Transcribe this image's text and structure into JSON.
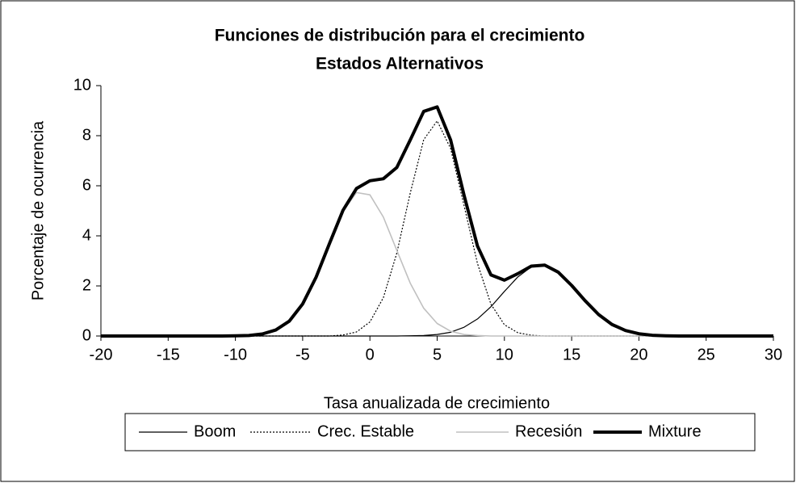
{
  "chart_data": {
    "type": "line",
    "title": "Funciones de distribución para el crecimiento",
    "subtitle": "Estados Alternativos",
    "x_label": "Tasa anualizada de crecimiento",
    "y_label": "Porcentaje de ocurrencia",
    "x": [
      -20,
      -19,
      -18,
      -17,
      -16,
      -15,
      -14,
      -13,
      -12,
      -11,
      -10,
      -9,
      -8,
      -7,
      -6,
      -5,
      -4,
      -3,
      -2,
      -1,
      0,
      1,
      2,
      3,
      4,
      5,
      6,
      7,
      8,
      9,
      10,
      11,
      12,
      13,
      14,
      15,
      16,
      17,
      18,
      19,
      20,
      21,
      22,
      23,
      24,
      25,
      26,
      27,
      28,
      29,
      30
    ],
    "series": [
      {
        "name": "Boom",
        "color": "#000000",
        "width": 1.2,
        "dash": "none",
        "values": [
          0,
          0,
          0,
          0,
          0,
          0,
          0,
          0,
          0,
          0,
          0,
          0,
          0,
          0,
          0,
          0,
          0,
          0,
          0,
          0,
          0,
          0,
          0,
          0.01,
          0.02,
          0.06,
          0.15,
          0.35,
          0.68,
          1.17,
          1.78,
          2.36,
          2.76,
          2.83,
          2.55,
          2.02,
          1.41,
          0.86,
          0.46,
          0.22,
          0.09,
          0.03,
          0.01,
          0,
          0,
          0,
          0,
          0,
          0,
          0,
          0
        ]
      },
      {
        "name": "Crec. Estable",
        "color": "#000000",
        "width": 1.2,
        "dash": "2 2",
        "values": [
          0,
          0,
          0,
          0,
          0,
          0,
          0,
          0,
          0,
          0,
          0,
          0,
          0,
          0,
          0,
          0,
          0,
          0,
          0.04,
          0.16,
          0.56,
          1.53,
          3.31,
          5.71,
          7.84,
          8.59,
          7.49,
          5.21,
          2.89,
          1.27,
          0.45,
          0.13,
          0.03,
          0,
          0,
          0,
          0,
          0,
          0,
          0,
          0,
          0,
          0,
          0,
          0,
          0,
          0,
          0,
          0,
          0,
          0
        ]
      },
      {
        "name": "Recesión",
        "color": "#c0c0c0",
        "width": 1.6,
        "dash": "none",
        "values": [
          0,
          0,
          0,
          0,
          0,
          0,
          0,
          0,
          0,
          0,
          0.01,
          0.02,
          0.08,
          0.24,
          0.59,
          1.28,
          2.35,
          3.7,
          4.98,
          5.73,
          5.64,
          4.75,
          3.42,
          2.11,
          1.11,
          0.5,
          0.19,
          0.06,
          0.02,
          0,
          0,
          0,
          0,
          0,
          0,
          0,
          0,
          0,
          0,
          0,
          0,
          0,
          0,
          0,
          0,
          0,
          0,
          0,
          0,
          0,
          0
        ]
      },
      {
        "name": "Mixture",
        "color": "#000000",
        "width": 4,
        "dash": "none",
        "values": [
          0,
          0,
          0,
          0,
          0,
          0,
          0,
          0,
          0,
          0,
          0.01,
          0.02,
          0.08,
          0.24,
          0.59,
          1.28,
          2.35,
          3.7,
          5.02,
          5.89,
          6.2,
          6.28,
          6.73,
          7.83,
          8.97,
          9.15,
          7.83,
          5.62,
          3.59,
          2.44,
          2.23,
          2.49,
          2.79,
          2.83,
          2.55,
          2.02,
          1.41,
          0.86,
          0.46,
          0.22,
          0.09,
          0.03,
          0.01,
          0,
          0,
          0,
          0,
          0,
          0,
          0,
          0
        ]
      }
    ],
    "xlim": [
      -20,
      30
    ],
    "xticks": [
      -20,
      -15,
      -10,
      -5,
      0,
      5,
      10,
      15,
      20,
      25,
      30
    ],
    "ylim": [
      0,
      10
    ],
    "yticks": [
      0,
      2,
      4,
      6,
      8,
      10
    ],
    "grid": false,
    "legend": "bottom"
  }
}
